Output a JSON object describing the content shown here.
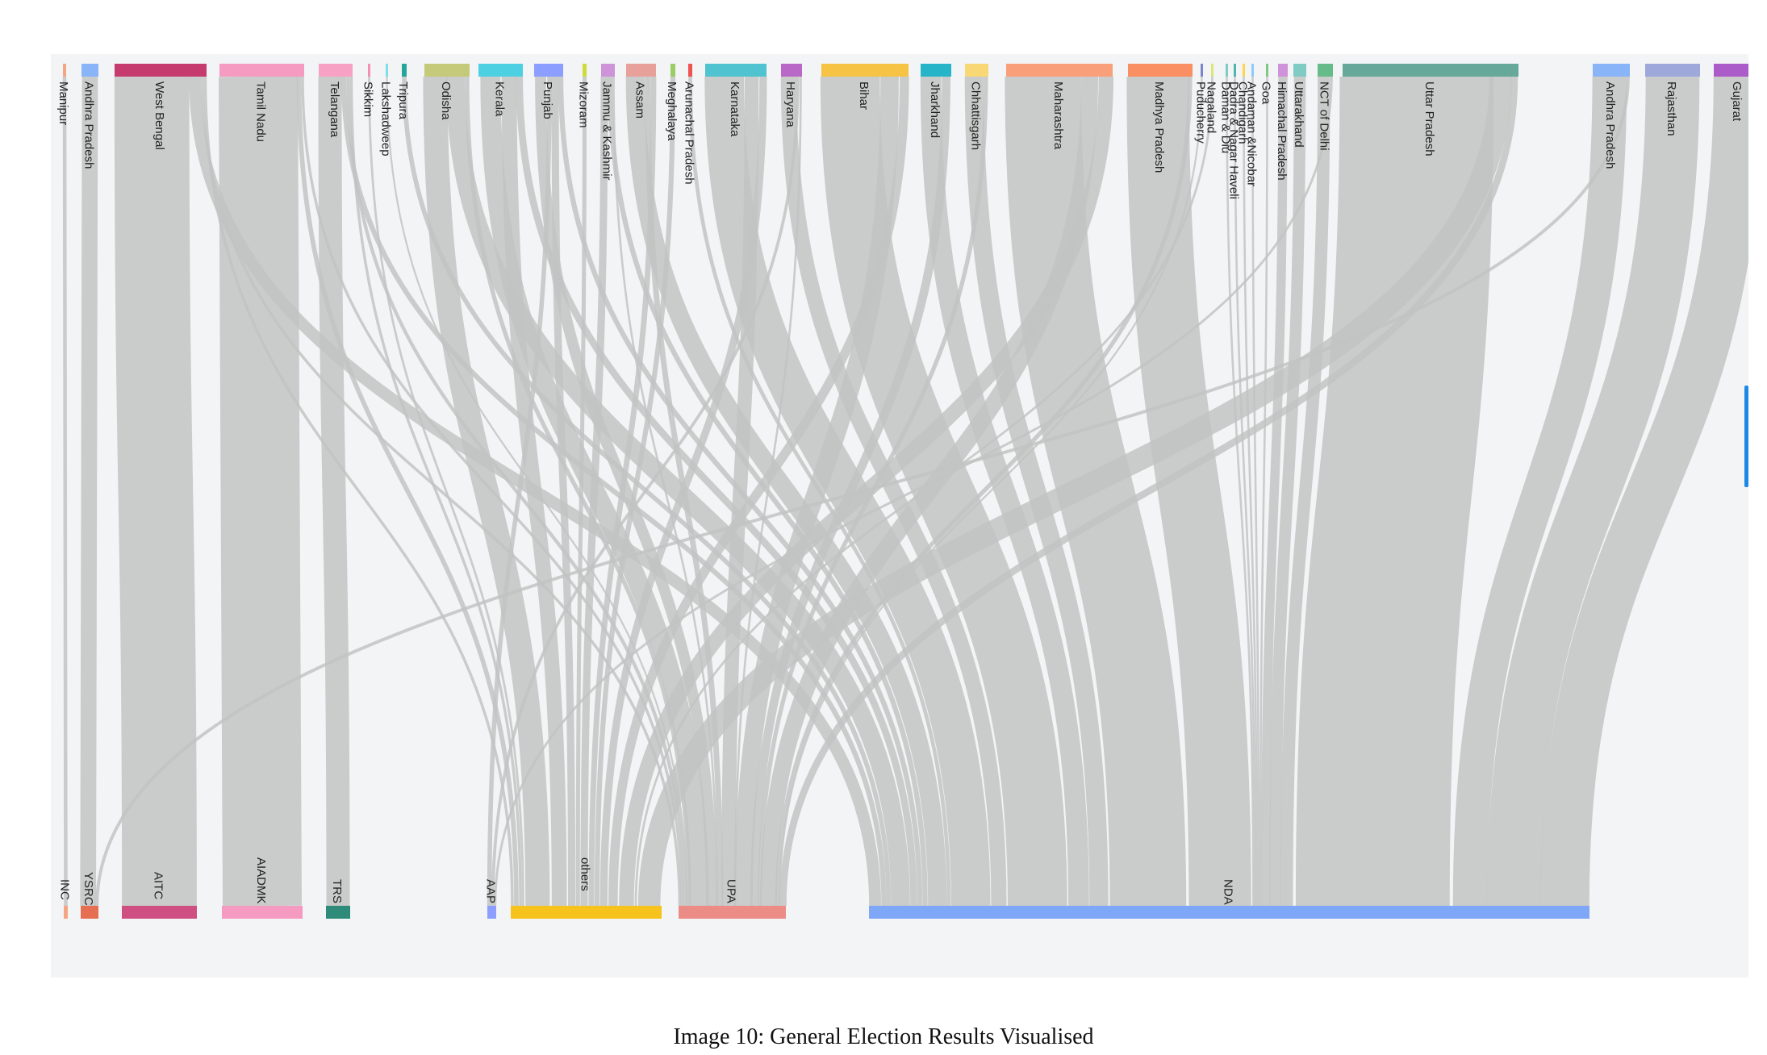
{
  "caption": "Image 10: General Election Results Visualised",
  "link_color": "#c2c3c3",
  "states": [
    {
      "label": "Manipur",
      "color": "#f4a582"
    },
    {
      "label": "Andhra Pradesh",
      "color": "#8ab4f8"
    },
    {
      "label": "West Bengal",
      "color": "#c53b6e"
    },
    {
      "label": "Tamil Nadu",
      "color": "#f59ac0"
    },
    {
      "label": "Telangana",
      "color": "#f7a1c4"
    },
    {
      "label": "Sikkim",
      "color": "#f48fb1"
    },
    {
      "label": "Lakshadweep",
      "color": "#80deea"
    },
    {
      "label": "Tripura",
      "color": "#26a69a"
    },
    {
      "label": "Odisha",
      "color": "#c5c97a"
    },
    {
      "label": "Kerala",
      "color": "#4dd0e1"
    },
    {
      "label": "Punjab",
      "color": "#8c9eff"
    },
    {
      "label": "Mizoram",
      "color": "#cddc39"
    },
    {
      "label": "Jammu & Kashmir",
      "color": "#ce93d8"
    },
    {
      "label": "Assam",
      "color": "#e8a09a"
    },
    {
      "label": "Meghalaya",
      "color": "#9ccc65"
    },
    {
      "label": "Arunachal Pradesh",
      "color": "#ef5350"
    },
    {
      "label": "Karnataka",
      "color": "#4fc3cf"
    },
    {
      "label": "Haryana",
      "color": "#ba68c8"
    },
    {
      "label": "Bihar",
      "color": "#f6c344"
    },
    {
      "label": "Jharkhand",
      "color": "#26b5c8"
    },
    {
      "label": "Chhattisgarh",
      "color": "#f8d775"
    },
    {
      "label": "Maharashtra",
      "color": "#f9a07a"
    },
    {
      "label": "Madhya Pradesh",
      "color": "#f98f62"
    },
    {
      "label": "Puducherry",
      "color": "#7986cb"
    },
    {
      "label": "Nagaland",
      "color": "#dce775"
    },
    {
      "label": "Daman & Diu",
      "color": "#80cbc4"
    },
    {
      "label": "Dadra & Nagar Haveli",
      "color": "#4db6ac"
    },
    {
      "label": "Chandigarh",
      "color": "#ffd54f"
    },
    {
      "label": "Andaman &Nicobar",
      "color": "#90caf9"
    },
    {
      "label": "Goa",
      "color": "#81c784"
    },
    {
      "label": "Himachal Pradesh",
      "color": "#ce93d8"
    },
    {
      "label": "Uttarakhand",
      "color": "#80cbc4"
    },
    {
      "label": "NCT of Delhi",
      "color": "#66bb8a"
    },
    {
      "label": "Uttar Pradesh",
      "color": "#66a899"
    },
    {
      "label": "Andhra Pradesh",
      "color": "#8ab4f8"
    },
    {
      "label": "Rajasthan",
      "color": "#9fa8da"
    },
    {
      "label": "Gujarat",
      "color": "#ab5cc8"
    }
  ],
  "parties": [
    {
      "label": "INC",
      "color": "#f4a582"
    },
    {
      "label": "YSRC",
      "color": "#e76f51"
    },
    {
      "label": "AITC",
      "color": "#cf4f82"
    },
    {
      "label": "AIADMK",
      "color": "#f59ac0"
    },
    {
      "label": "TRS",
      "color": "#2e8b7a"
    },
    {
      "label": "AAP",
      "color": "#8c9eff"
    },
    {
      "label": "others",
      "color": "#f6c21c"
    },
    {
      "label": "UPA",
      "color": "#eb8d86"
    },
    {
      "label": "NDA",
      "color": "#7fa7f7"
    }
  ]
}
